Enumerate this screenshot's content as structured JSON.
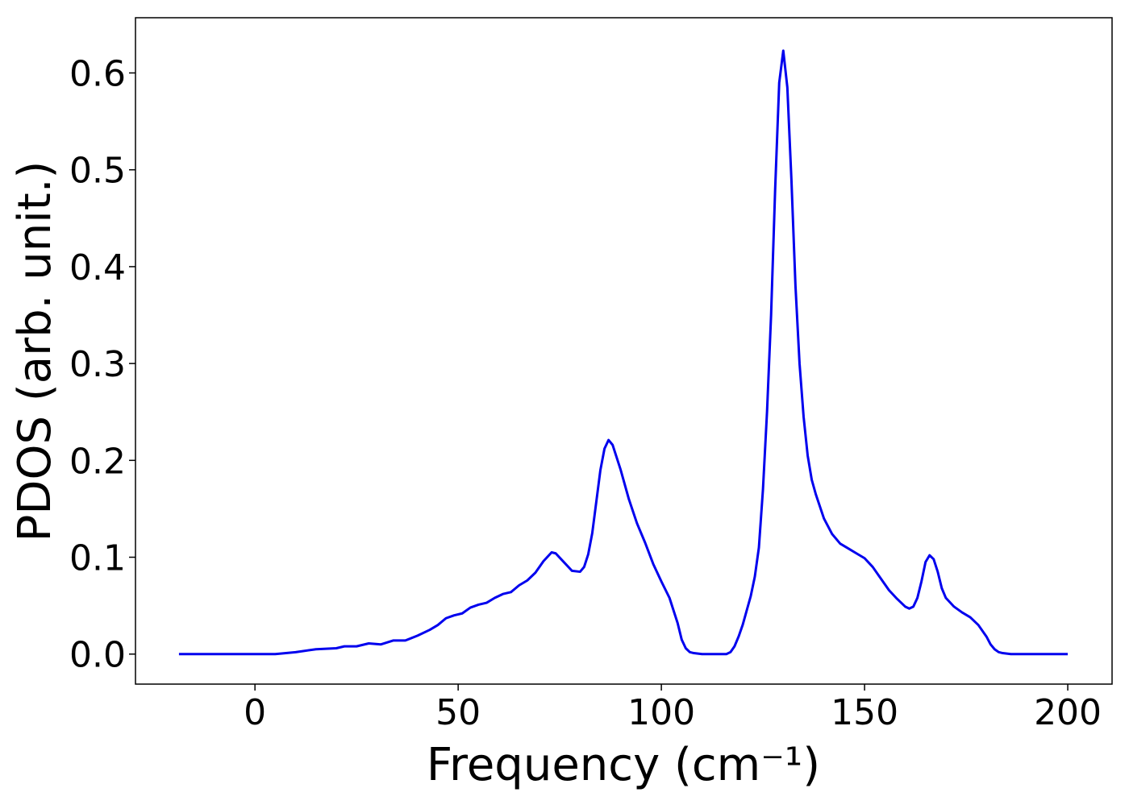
{
  "chart_data": {
    "type": "line",
    "x_label": "Frequency (cm⁻¹)",
    "y_label": "PDOS (arb. unit.)",
    "x": [
      -18.7,
      -10,
      0,
      5,
      10,
      15,
      20,
      22,
      25,
      28,
      31,
      34,
      37,
      40,
      43,
      45,
      47,
      49,
      51,
      53,
      55,
      57,
      59,
      61,
      63,
      65,
      67,
      69,
      71,
      73,
      74,
      76,
      78,
      80,
      81,
      82,
      83,
      85,
      86,
      87,
      88,
      90,
      92,
      94,
      96,
      98,
      100,
      102,
      104,
      105,
      106,
      107,
      108,
      110,
      116,
      117,
      118,
      119,
      120,
      121,
      122,
      123,
      124,
      125,
      126,
      127,
      128,
      129,
      130,
      131,
      132,
      133,
      134,
      135,
      136,
      137,
      138,
      140,
      142,
      144,
      146,
      148,
      150,
      152,
      154,
      156,
      158,
      160,
      161,
      162,
      163,
      164,
      165,
      166,
      167,
      168,
      169,
      170,
      172,
      174,
      176,
      178,
      180,
      181,
      182,
      183,
      184,
      186,
      200
    ],
    "series": [
      {
        "color": "#0000ee",
        "values": [
          0,
          0,
          0,
          0,
          0.002,
          0.005,
          0.006,
          0.008,
          0.008,
          0.011,
          0.01,
          0.014,
          0.014,
          0.019,
          0.025,
          0.03,
          0.037,
          0.04,
          0.042,
          0.048,
          0.051,
          0.053,
          0.058,
          0.062,
          0.064,
          0.071,
          0.076,
          0.084,
          0.096,
          0.105,
          0.104,
          0.095,
          0.086,
          0.085,
          0.09,
          0.103,
          0.125,
          0.19,
          0.212,
          0.221,
          0.216,
          0.19,
          0.16,
          0.135,
          0.115,
          0.093,
          0.075,
          0.058,
          0.032,
          0.015,
          0.006,
          0.002,
          0.001,
          0,
          0,
          0.002,
          0.008,
          0.018,
          0.03,
          0.045,
          0.06,
          0.08,
          0.11,
          0.17,
          0.25,
          0.35,
          0.48,
          0.59,
          0.623,
          0.585,
          0.49,
          0.38,
          0.3,
          0.245,
          0.205,
          0.18,
          0.165,
          0.14,
          0.124,
          0.114,
          0.109,
          0.104,
          0.099,
          0.09,
          0.078,
          0.066,
          0.057,
          0.049,
          0.047,
          0.049,
          0.058,
          0.075,
          0.095,
          0.102,
          0.098,
          0.085,
          0.068,
          0.058,
          0.049,
          0.043,
          0.038,
          0.03,
          0.018,
          0.01,
          0.005,
          0.002,
          0.001,
          0,
          0
        ]
      }
    ],
    "xlim": [
      -29.4,
      210.9
    ],
    "ylim": [
      -0.031,
      0.657
    ],
    "xticks": [
      0,
      50,
      100,
      150,
      200
    ],
    "yticks": [
      {
        "value": 0,
        "label": "0.0"
      },
      0.1,
      0.2,
      0.3,
      0.4,
      0.5,
      0.6
    ],
    "grid": false
  }
}
